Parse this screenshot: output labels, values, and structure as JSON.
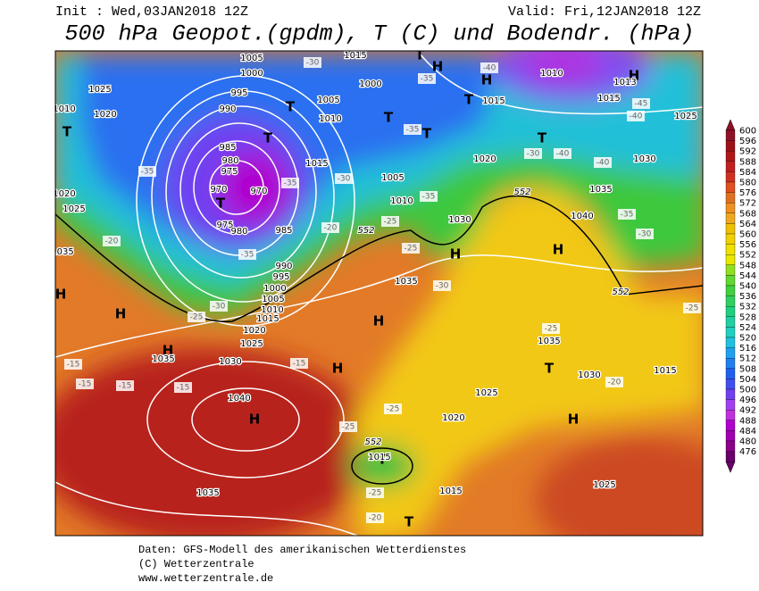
{
  "header": {
    "init": "Init : Wed,03JAN2018 12Z",
    "valid": "Valid: Fri,12JAN2018 12Z",
    "title": "500 hPa Geopot.(gpdm), T (C) und Bodendr. (hPa)"
  },
  "footer": {
    "line1": "Daten: GFS-Modell des amerikanischen Wetterdienstes",
    "line2": "(C) Wetterzentrale",
    "line3": "www.wetterzentrale.de"
  },
  "colorbar": {
    "levels": [
      600,
      596,
      592,
      588,
      584,
      580,
      576,
      572,
      568,
      564,
      560,
      556,
      552,
      548,
      544,
      540,
      536,
      532,
      528,
      524,
      520,
      516,
      512,
      508,
      504,
      500,
      496,
      492,
      488,
      484,
      480,
      476
    ],
    "colors": [
      "#901028",
      "#a01018",
      "#b01818",
      "#c02020",
      "#d03020",
      "#e05020",
      "#e07020",
      "#f09020",
      "#f0a820",
      "#f0c000",
      "#f0d000",
      "#f0e000",
      "#e8e800",
      "#90e020",
      "#60d830",
      "#40d040",
      "#30d060",
      "#20d080",
      "#20d0a0",
      "#20d0c0",
      "#20c0e0",
      "#20a0f0",
      "#2080f0",
      "#2060f0",
      "#4050f0",
      "#7040f0",
      "#a040f0",
      "#c030e0",
      "#b000d0",
      "#a000b0",
      "#8a008a",
      "#6a006a"
    ]
  },
  "map": {
    "labels": [
      "H",
      "H",
      "H",
      "H",
      "H",
      "H",
      "H",
      "H",
      "H",
      "H",
      "H",
      "H",
      "T",
      "T",
      "T",
      "T",
      "T",
      "T",
      "T",
      "T",
      "T",
      "T",
      "T",
      "T",
      "1025",
      "1020",
      "1005",
      "1000",
      "995",
      "990",
      "985",
      "980",
      "975",
      "970",
      "970",
      "975",
      "980",
      "985",
      "990",
      "995",
      "1000",
      "1005",
      "1010",
      "1015",
      "1020",
      "1025",
      "1030",
      "1035",
      "1040",
      "1035",
      "1005",
      "1010",
      "1000",
      "1015",
      "1015",
      "1020",
      "1030",
      "1035",
      "1010",
      "1005",
      "1035",
      "1030",
      "1015",
      "1025",
      "1020",
      "1015",
      "1025",
      "1015",
      "1040",
      "1035",
      "1030",
      "1025",
      "1015",
      "1010",
      "1013",
      "1020",
      "1025",
      "1035",
      "1010",
      "1015",
      "-35",
      "-30",
      "-25",
      "-15",
      "-15",
      "-15",
      "-15",
      "-15",
      "-25",
      "-25",
      "-25",
      "-20",
      "-30",
      "-25",
      "-25",
      "-20",
      "-30",
      "-35",
      "-35",
      "-20",
      "-35",
      "-30",
      "-40",
      "-40",
      "-35",
      "-30",
      "-25",
      "-25",
      "-20",
      "-35",
      "-40",
      "-45",
      "-40",
      "-35",
      "-30",
      "552",
      "552",
      "552",
      "552"
    ]
  }
}
